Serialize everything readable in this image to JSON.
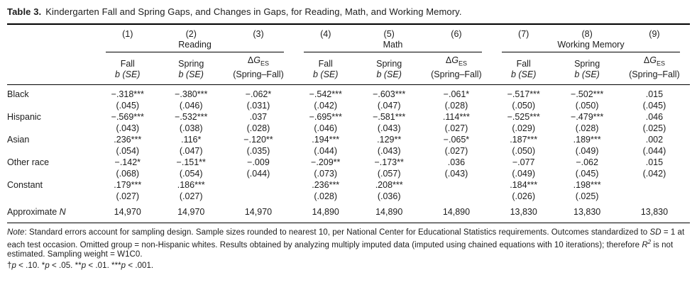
{
  "title": {
    "label": "Table 3.",
    "text": "Kindergarten Fall and Spring Gaps, and Changes in Gaps, for Reading, Math, and Working Memory."
  },
  "table": {
    "header": {
      "col_numbers": [
        "(1)",
        "(2)",
        "(3)",
        "(4)",
        "(5)",
        "(6)",
        "(7)",
        "(8)",
        "(9)"
      ],
      "groups": [
        {
          "name": "Reading"
        },
        {
          "name": "Math"
        },
        {
          "name": "Working Memory"
        }
      ],
      "sub_columns": [
        {
          "line1": "Fall",
          "line2": "b (SE)"
        },
        {
          "line1": "Spring",
          "line2": "b (SE)"
        },
        {
          "delta": "Δ",
          "g": "G",
          "sub": "ES",
          "line2": "(Spring–Fall)"
        }
      ]
    },
    "rows": [
      {
        "label": "Black",
        "cells": [
          [
            "−.318***",
            "(.045)"
          ],
          [
            "−.380***",
            "(.046)"
          ],
          [
            "−.062*",
            "(.031)"
          ],
          [
            "−.542***",
            "(.042)"
          ],
          [
            "−.603***",
            "(.047)"
          ],
          [
            "−.061*",
            "(.028)"
          ],
          [
            "−.517***",
            "(.050)"
          ],
          [
            "−.502***",
            "(.050)"
          ],
          [
            ".015",
            "(.045)"
          ]
        ]
      },
      {
        "label": "Hispanic",
        "cells": [
          [
            "−.569***",
            "(.043)"
          ],
          [
            "−.532***",
            "(.038)"
          ],
          [
            ".037",
            "(.028)"
          ],
          [
            "−.695***",
            "(.046)"
          ],
          [
            "−.581***",
            "(.043)"
          ],
          [
            ".114***",
            "(.027)"
          ],
          [
            "−.525***",
            "(.029)"
          ],
          [
            "−.479***",
            "(.028)"
          ],
          [
            ".046",
            "(.025)"
          ]
        ]
      },
      {
        "label": "Asian",
        "cells": [
          [
            ".236***",
            "(.054)"
          ],
          [
            ".116*",
            "(.047)"
          ],
          [
            "−.120**",
            "(.035)"
          ],
          [
            ".194***",
            "(.044)"
          ],
          [
            ".129**",
            "(.043)"
          ],
          [
            "−.065*",
            "(.027)"
          ],
          [
            ".187***",
            "(.050)"
          ],
          [
            ".189***",
            "(.049)"
          ],
          [
            ".002",
            "(.044)"
          ]
        ]
      },
      {
        "label": "Other race",
        "cells": [
          [
            "−.142*",
            "(.068)"
          ],
          [
            "−.151**",
            "(.054)"
          ],
          [
            "−.009",
            "(.044)"
          ],
          [
            "−.209**",
            "(.073)"
          ],
          [
            "−.173**",
            "(.057)"
          ],
          [
            ".036",
            "(.043)"
          ],
          [
            "−.077",
            "(.049)"
          ],
          [
            "−.062",
            "(.045)"
          ],
          [
            ".015",
            "(.042)"
          ]
        ]
      },
      {
        "label": "Constant",
        "cells": [
          [
            ".179***",
            "(.027)"
          ],
          [
            ".186***",
            "(.027)"
          ],
          [
            "",
            ""
          ],
          [
            ".236***",
            "(.028)"
          ],
          [
            ".208***",
            "(.036)"
          ],
          [
            "",
            ""
          ],
          [
            ".184***",
            "(.026)"
          ],
          [
            ".198***",
            "(.025)"
          ],
          [
            "",
            ""
          ]
        ]
      },
      {
        "label": "Approximate ",
        "label_italic": "N",
        "single_line": true,
        "cells": [
          [
            "14,970"
          ],
          [
            "14,970"
          ],
          [
            "14,970"
          ],
          [
            "14,890"
          ],
          [
            "14,890"
          ],
          [
            "14,890"
          ],
          [
            "13,830"
          ],
          [
            "13,830"
          ],
          [
            "13,830"
          ]
        ]
      }
    ]
  },
  "note": {
    "segments": [
      {
        "t": "Note",
        "i": true
      },
      {
        "t": ": Standard errors account for sampling design. Sample sizes rounded to nearest 10, per National Center for Educational Statistics requirements. Outcomes standardized to "
      },
      {
        "t": "SD",
        "i": true
      },
      {
        "t": " = 1 at each test occasion. Omitted group = non-Hispanic whites. Results obtained by analyzing multiply imputed data (imputed using chained equations with 10 iterations); therefore "
      },
      {
        "t": "R",
        "i": true
      },
      {
        "t": "2",
        "sup": true
      },
      {
        "t": " is not estimated. Sampling weight = W1C0."
      }
    ],
    "significance_segments": [
      {
        "t": "†"
      },
      {
        "t": "p",
        "i": true
      },
      {
        "t": " < .10. *"
      },
      {
        "t": "p",
        "i": true
      },
      {
        "t": " < .05. **"
      },
      {
        "t": "p",
        "i": true
      },
      {
        "t": " < .01. ***"
      },
      {
        "t": "p",
        "i": true
      },
      {
        "t": " < .001."
      }
    ]
  }
}
